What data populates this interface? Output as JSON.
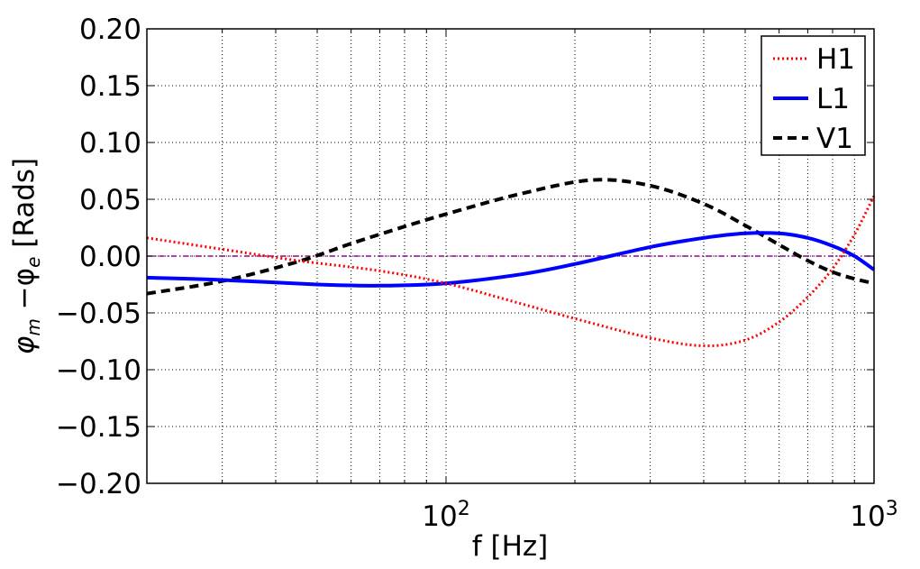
{
  "chart_data": {
    "type": "line",
    "xscale": "log",
    "xlim": [
      20,
      1000
    ],
    "ylim": [
      -0.2,
      0.2
    ],
    "xlabel": "f [Hz]",
    "ylabel_parts": [
      "φ",
      "m",
      " −φ",
      "e",
      " [Rads]"
    ],
    "x_tick_labels": [
      {
        "base": "10",
        "exp": "2",
        "value": 100
      },
      {
        "base": "10",
        "exp": "3",
        "value": 1000
      }
    ],
    "y_ticks": [
      -0.2,
      -0.15,
      -0.1,
      -0.05,
      0.0,
      0.05,
      0.1,
      0.15,
      0.2
    ],
    "y_tick_labels": [
      "−0.20",
      "−0.15",
      "−0.10",
      "−0.05",
      "0.00",
      "0.05",
      "0.10",
      "0.15",
      "0.20"
    ],
    "grid": true,
    "legend_position": "top-right",
    "series": [
      {
        "name": "H1",
        "color": "#ff0000",
        "style": "dotted",
        "x": [
          20,
          30,
          45,
          70,
          100,
          150,
          200,
          300,
          400,
          500,
          600,
          700,
          800,
          900,
          1000
        ],
        "y": [
          0.016,
          0.006,
          -0.004,
          -0.013,
          -0.024,
          -0.042,
          -0.055,
          -0.072,
          -0.079,
          -0.074,
          -0.058,
          -0.036,
          -0.011,
          0.019,
          0.053
        ]
      },
      {
        "name": "L1",
        "color": "#0000ff",
        "style": "solid",
        "x": [
          20,
          30,
          50,
          70,
          100,
          150,
          200,
          300,
          400,
          500,
          600,
          700,
          800,
          900,
          1000
        ],
        "y": [
          -0.019,
          -0.021,
          -0.025,
          -0.026,
          -0.024,
          -0.016,
          -0.007,
          0.008,
          0.016,
          0.02,
          0.02,
          0.016,
          0.009,
          0.0,
          -0.012
        ]
      },
      {
        "name": "V1",
        "color": "#000000",
        "style": "dashed",
        "x": [
          20,
          30,
          45,
          60,
          80,
          100,
          150,
          220,
          300,
          400,
          500,
          600,
          700,
          800,
          900,
          1000
        ],
        "y": [
          -0.033,
          -0.022,
          -0.005,
          0.011,
          0.026,
          0.037,
          0.055,
          0.067,
          0.062,
          0.046,
          0.027,
          0.01,
          -0.004,
          -0.014,
          -0.02,
          -0.024
        ]
      }
    ],
    "reference_line": {
      "y": 0.0,
      "color": "#990099",
      "style": "dash-dot"
    }
  }
}
